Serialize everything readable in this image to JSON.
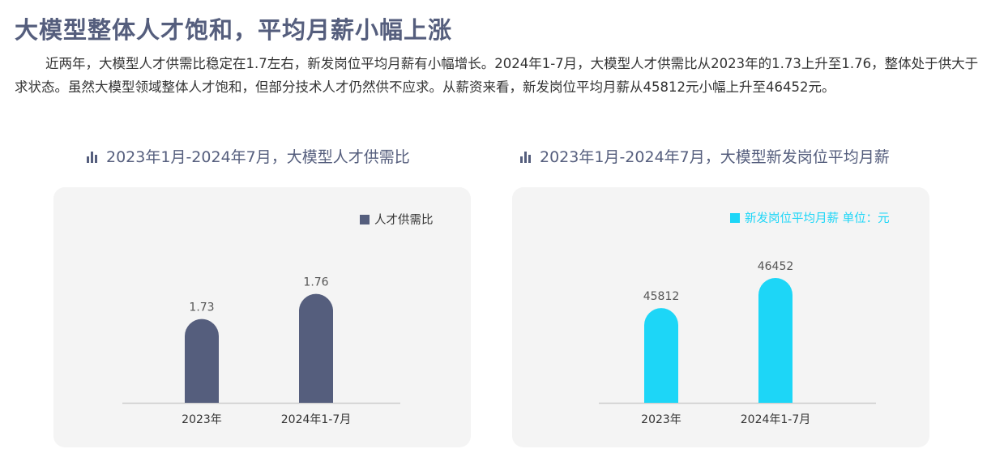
{
  "title": "大模型整体人才饱和，平均月薪小幅上涨",
  "paragraph": "近两年，大模型人才供需比稳定在1.7左右，新发岗位平均月薪有小幅增长。2024年1-7月，大模型人才供需比从2023年的1.73上升至1.76，整体处于供大于求状态。虽然大模型领域整体人才饱和，但部分技术人才仍然供不应求。从薪资来看，新发岗位平均月薪从45812元小幅上升至46452元。",
  "colors": {
    "title": "#555e7d",
    "series1": "#555e7d",
    "series2": "#1dd6f7",
    "card": "#f4f4f4",
    "axis": "#cccccc"
  },
  "icons": {
    "chart_heading": "bar-chart-icon"
  },
  "chart_data": [
    {
      "type": "bar",
      "title": "2023年1月-2024年7月，大模型人才供需比",
      "categories": [
        "2023年",
        "2024年1-7月"
      ],
      "series": [
        {
          "name": "人才供需比",
          "values": [
            1.73,
            1.76
          ]
        }
      ],
      "value_labels": [
        "1.73",
        "1.76"
      ],
      "legend_text": "人才供需比",
      "legend_position": "top-right",
      "grid": false
    },
    {
      "type": "bar",
      "title": "2023年1月-2024年7月，大模型新发岗位平均月薪",
      "categories": [
        "2023年",
        "2024年1-7月"
      ],
      "series": [
        {
          "name": "新发岗位平均月薪",
          "values": [
            45812,
            46452
          ]
        }
      ],
      "value_labels": [
        "45812",
        "46452"
      ],
      "legend_text": "新发岗位平均月薪  单位：元",
      "legend_position": "top-right",
      "grid": false
    }
  ]
}
